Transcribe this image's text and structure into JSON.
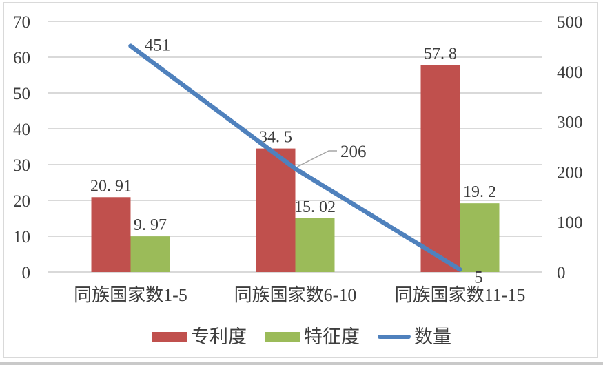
{
  "chart_data": {
    "type": "bar",
    "subtype": "bar-line-combo",
    "categories": [
      "同族国家数1-5",
      "同族国家数6-10",
      "同族国家数11-15"
    ],
    "series": [
      {
        "name": "专利度",
        "type": "bar",
        "axis": "left",
        "color": "#c0504d",
        "values": [
          20.91,
          34.5,
          57.8
        ],
        "labels": [
          "20. 91",
          "34. 5",
          "57. 8"
        ]
      },
      {
        "name": "特征度",
        "type": "bar",
        "axis": "left",
        "color": "#9bbb59",
        "values": [
          9.97,
          15.02,
          19.2
        ],
        "labels": [
          "9. 97",
          "15. 02",
          "19. 2"
        ]
      },
      {
        "name": "数量",
        "type": "line",
        "axis": "right",
        "color": "#4f81bd",
        "values": [
          451,
          206,
          5
        ],
        "labels": [
          "451",
          "206",
          "5"
        ]
      }
    ],
    "left_axis": {
      "min": 0,
      "max": 70,
      "step": 10,
      "ticks": [
        "0",
        "10",
        "20",
        "30",
        "40",
        "50",
        "60",
        "70"
      ]
    },
    "right_axis": {
      "min": 0,
      "max": 500,
      "step": 100,
      "ticks": [
        "0",
        "100",
        "200",
        "300",
        "400",
        "500"
      ]
    },
    "grid": true,
    "legend_position": "bottom",
    "callout": {
      "series": "数量",
      "point_index": 1,
      "label": "206"
    },
    "colors": {
      "grid": "#d9d9d9",
      "frame_border": "#d9d9d9",
      "text": "#3d3d3d",
      "leader_line": "#a6a6a6",
      "background": "#ffffff"
    }
  }
}
